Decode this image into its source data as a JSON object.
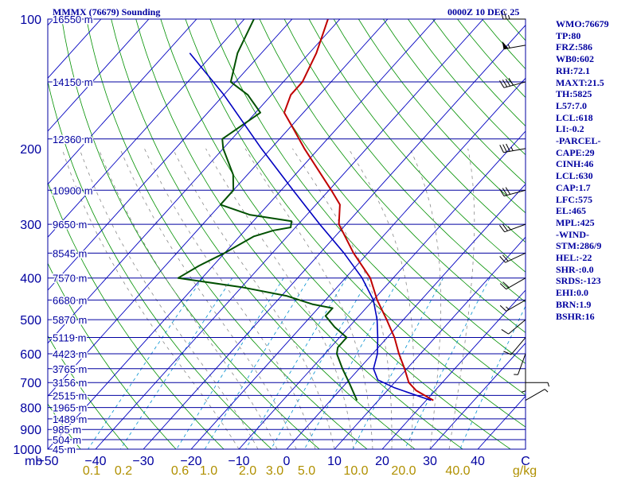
{
  "header": {
    "title": "MMMX (76679) Sounding",
    "time": "0000Z 10 DEC 25"
  },
  "indices": [
    "WMO:76679",
    "TP:80",
    "FRZ:586",
    "WB0:602",
    "RH:72.1",
    "MAXT:21.5",
    "TH:5825",
    "L57:7.0",
    "LCL:618",
    "LI:-0.2",
    "-PARCEL-",
    "CAPE:29",
    "CINH:46",
    "LCL:630",
    "CAP:1.7",
    "LFC:575",
    "EL:465",
    "MPL:425",
    "-WIND-",
    "STM:286/9",
    "HEL:-22",
    "SHR-:0.0",
    "SRDS:-123",
    "EHI:0.0",
    "BRN:1.9",
    "BSHR:16"
  ],
  "colors": {
    "isobar": "#0000a0",
    "isotherm": "#0000c0",
    "dry_adiabat": "#009000",
    "moist_adiabat": "#8a8a8a",
    "mixing_ratio": "#0090d0",
    "temperature": "#c00000",
    "dewpoint": "#005000",
    "parcel": "#0000c0",
    "label": "#0000a0",
    "mixing_label": "#b09000",
    "wind": "#000000"
  },
  "chart_data": {
    "type": "skew-t",
    "title": "MMMX (76679) Sounding",
    "xlabel": "C",
    "ylabel": "mb",
    "pressure_range_mb": [
      1000,
      100
    ],
    "temperature_range_c": [
      -50,
      50
    ],
    "pressure_ticks": [
      100,
      200,
      300,
      400,
      500,
      600,
      700,
      800,
      900,
      1000
    ],
    "temperature_ticks": [
      -50,
      -40,
      -30,
      -20,
      -10,
      0,
      10,
      20,
      30,
      40
    ],
    "mixing_ratio_labels": [
      "0.1",
      "0.2",
      "0.6",
      "1.0",
      "2.0",
      "3.0",
      "5.0",
      "10.0",
      "20.0",
      "40.0"
    ],
    "mixing_ratio_unit": "g/kg",
    "height_labels": [
      {
        "p": 100,
        "label": "16550 m"
      },
      {
        "p": 140,
        "label": "14150 m"
      },
      {
        "p": 190,
        "label": "12360 m"
      },
      {
        "p": 250,
        "label": "10900 m"
      },
      {
        "p": 300,
        "label": "9650 m"
      },
      {
        "p": 350,
        "label": "8545 m"
      },
      {
        "p": 400,
        "label": "7570 m"
      },
      {
        "p": 450,
        "label": "6680 m"
      },
      {
        "p": 500,
        "label": "5870 m"
      },
      {
        "p": 550,
        "label": "5119 m"
      },
      {
        "p": 600,
        "label": "4423 m"
      },
      {
        "p": 650,
        "label": "3765 m"
      },
      {
        "p": 700,
        "label": "3156 m"
      },
      {
        "p": 750,
        "label": "2515 m"
      },
      {
        "p": 800,
        "label": "1965 m"
      },
      {
        "p": 850,
        "label": "1489 m"
      },
      {
        "p": 900,
        "label": "985 m"
      },
      {
        "p": 950,
        "label": "504 m"
      },
      {
        "p": 1000,
        "label": "45 m"
      }
    ],
    "series": [
      {
        "key": "temperature",
        "points": [
          {
            "p": 770,
            "t": 21.5
          },
          {
            "p": 730,
            "t": 16.0
          },
          {
            "p": 700,
            "t": 13.0
          },
          {
            "p": 650,
            "t": 9.5
          },
          {
            "p": 600,
            "t": 5.5
          },
          {
            "p": 550,
            "t": 1.5
          },
          {
            "p": 500,
            "t": -3.5
          },
          {
            "p": 450,
            "t": -9.2
          },
          {
            "p": 400,
            "t": -14.8
          },
          {
            "p": 350,
            "t": -23.0
          },
          {
            "p": 300,
            "t": -31.5
          },
          {
            "p": 270,
            "t": -35.0
          },
          {
            "p": 250,
            "t": -39.5
          },
          {
            "p": 200,
            "t": -53.0
          },
          {
            "p": 180,
            "t": -59.0
          },
          {
            "p": 165,
            "t": -64.0
          },
          {
            "p": 150,
            "t": -66.0
          },
          {
            "p": 140,
            "t": -66.0
          },
          {
            "p": 120,
            "t": -68.5
          },
          {
            "p": 100,
            "t": -72.5
          }
        ]
      },
      {
        "key": "dewpoint",
        "points": [
          {
            "p": 770,
            "t": 5.5
          },
          {
            "p": 700,
            "t": 0.5
          },
          {
            "p": 650,
            "t": -3.5
          },
          {
            "p": 600,
            "t": -7.5
          },
          {
            "p": 580,
            "t": -8.5
          },
          {
            "p": 550,
            "t": -8.5
          },
          {
            "p": 520,
            "t": -13.0
          },
          {
            "p": 490,
            "t": -17.0
          },
          {
            "p": 470,
            "t": -17.0
          },
          {
            "p": 460,
            "t": -22.0
          },
          {
            "p": 440,
            "t": -29.0
          },
          {
            "p": 420,
            "t": -40.0
          },
          {
            "p": 400,
            "t": -55.0
          },
          {
            "p": 375,
            "t": -53.0
          },
          {
            "p": 350,
            "t": -50.0
          },
          {
            "p": 320,
            "t": -47.0
          },
          {
            "p": 310,
            "t": -44.0
          },
          {
            "p": 305,
            "t": -41.0
          },
          {
            "p": 295,
            "t": -42.0
          },
          {
            "p": 285,
            "t": -52.0
          },
          {
            "p": 270,
            "t": -60.0
          },
          {
            "p": 250,
            "t": -60.0
          },
          {
            "p": 230,
            "t": -63.0
          },
          {
            "p": 200,
            "t": -70.0
          },
          {
            "p": 190,
            "t": -72.0
          },
          {
            "p": 165,
            "t": -69.0
          },
          {
            "p": 150,
            "t": -75.0
          },
          {
            "p": 140,
            "t": -81.0
          },
          {
            "p": 120,
            "t": -85.0
          },
          {
            "p": 100,
            "t": -88.0
          }
        ]
      },
      {
        "key": "parcel",
        "points": [
          {
            "p": 770,
            "t": 21.0
          },
          {
            "p": 720,
            "t": 11.0
          },
          {
            "p": 690,
            "t": 6.0
          },
          {
            "p": 650,
            "t": 3.0
          },
          {
            "p": 600,
            "t": 1.0
          },
          {
            "p": 550,
            "t": -2.0
          },
          {
            "p": 500,
            "t": -5.5
          },
          {
            "p": 450,
            "t": -10.0
          },
          {
            "p": 400,
            "t": -16.5
          },
          {
            "p": 350,
            "t": -25.0
          },
          {
            "p": 300,
            "t": -35.5
          },
          {
            "p": 250,
            "t": -47.5
          },
          {
            "p": 200,
            "t": -62.0
          },
          {
            "p": 150,
            "t": -80.0
          },
          {
            "p": 120,
            "t": -95.0
          }
        ]
      }
    ],
    "wind_barbs": [
      {
        "p": 100,
        "dir": 270,
        "kt": 25
      },
      {
        "p": 115,
        "dir": 260,
        "kt": 55
      },
      {
        "p": 140,
        "dir": 255,
        "kt": 40
      },
      {
        "p": 200,
        "dir": 260,
        "kt": 35
      },
      {
        "p": 250,
        "dir": 255,
        "kt": 30
      },
      {
        "p": 300,
        "dir": 250,
        "kt": 25
      },
      {
        "p": 350,
        "dir": 245,
        "kt": 20
      },
      {
        "p": 400,
        "dir": 240,
        "kt": 20
      },
      {
        "p": 450,
        "dir": 240,
        "kt": 15
      },
      {
        "p": 500,
        "dir": 230,
        "kt": 10
      },
      {
        "p": 550,
        "dir": 220,
        "kt": 10
      },
      {
        "p": 600,
        "dir": 200,
        "kt": 5
      },
      {
        "p": 650,
        "dir": 180,
        "kt": 5
      },
      {
        "p": 700,
        "dir": 90,
        "kt": 5
      },
      {
        "p": 770,
        "dir": 60,
        "kt": 5
      }
    ]
  }
}
